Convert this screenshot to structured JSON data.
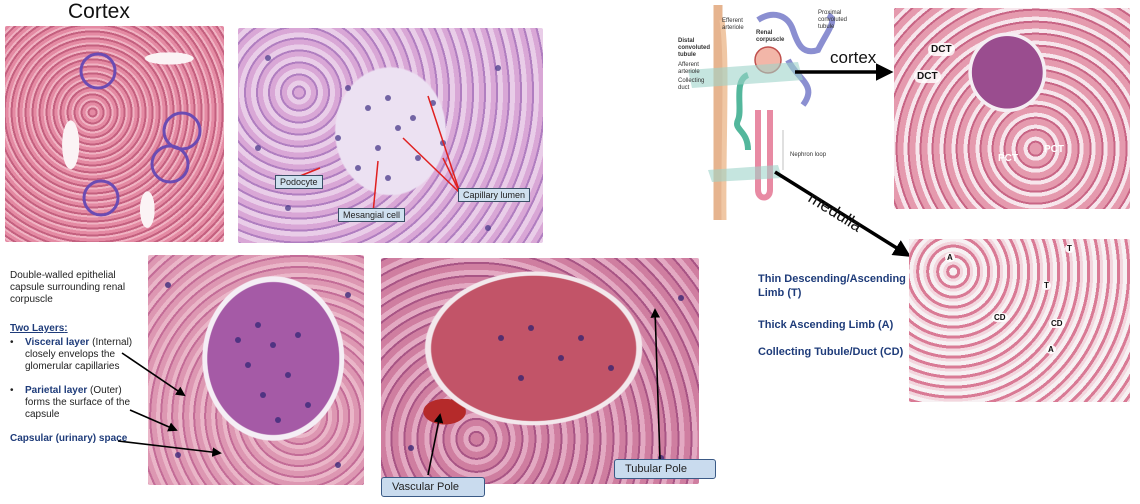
{
  "cortex_title": "Cortex",
  "glomerulus_labels": {
    "podocyte": "Podocyte",
    "mesangial": "Mesangial cell",
    "capillary": "Capillary lumen"
  },
  "capsule_text": {
    "intro": "Double-walled epithelial capsule surrounding renal corpuscle",
    "two_layers": "Two Layers",
    "visceral_title": "Visceral layer",
    "visceral_paren": "(Internal)",
    "visceral_desc": "closely envelops the glomerular capillaries",
    "parietal_title": "Parietal layer",
    "parietal_paren": "(Outer)",
    "parietal_desc": "forms the surface of the capsule",
    "capsular_space": "Capsular (urinary) space"
  },
  "poles": {
    "vascular": "Vascular Pole",
    "tubular": "Tubular Pole"
  },
  "diagram_labels": {
    "efferent": "Efferent arteriole",
    "renal_corpuscle": "Renal corpuscle",
    "proximal": "Proximal convoluted tubule",
    "distal": "Distal convoluted tubule",
    "afferent": "Afferent arteriole",
    "collecting": "Collecting duct",
    "nephron_loop": "Nephron loop"
  },
  "arrows": {
    "cortex": "cortex",
    "medulla": "medulla"
  },
  "cortex_labels": {
    "dct1": "DCT",
    "dct2": "DCT",
    "pct1": "PCT",
    "pct2": "PCT"
  },
  "medulla_labels": {
    "a1": "A",
    "t1": "T",
    "t2": "T",
    "cd1": "CD",
    "cd2": "CD",
    "a2": "A"
  },
  "legend": {
    "thin": "Thin Descending/Ascending Limb (T)",
    "thick": "Thick Ascending Limb (A)",
    "collecting": "Collecting Tubule/Duct (CD)"
  },
  "colors": {
    "he_pink": "#d9839a",
    "nuclei": "#4a3a8a",
    "accent_blue": "#1f3c7a"
  }
}
